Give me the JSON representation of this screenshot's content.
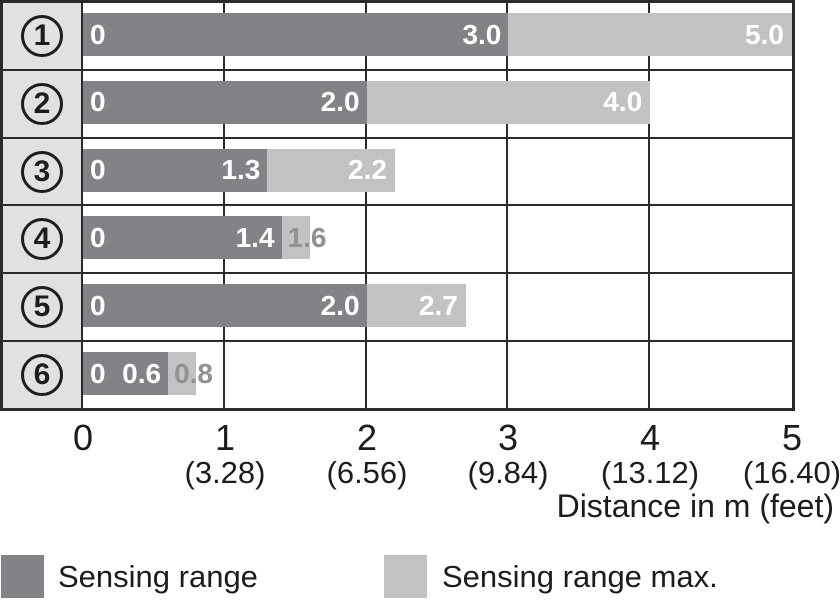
{
  "chart_data": {
    "type": "bar",
    "orientation": "horizontal",
    "categories": [
      "1",
      "2",
      "3",
      "4",
      "5",
      "6"
    ],
    "series": [
      {
        "name": "Sensing range",
        "color": "#818386",
        "values": [
          3.0,
          2.0,
          1.3,
          1.4,
          2.0,
          0.6
        ]
      },
      {
        "name": "Sensing range max.",
        "color": "#c0c2c4",
        "values": [
          5.0,
          4.0,
          2.2,
          1.6,
          2.7,
          0.8
        ]
      }
    ],
    "xlabel": "Distance in m (feet)",
    "xlim": [
      0,
      5
    ],
    "x_ticks_m": [
      "0",
      "1",
      "2",
      "3",
      "4",
      "5"
    ],
    "x_ticks_feet": [
      "",
      "(3.28)",
      "(6.56)",
      "(9.84)",
      "(13.12)",
      "(16.40)"
    ],
    "grid": "on",
    "legend_position": "bottom",
    "bar_start_label": "0"
  },
  "rows": [
    {
      "id": "1",
      "zero": "0",
      "dark": 3.0,
      "dark_label": "3.0",
      "light": 5.0,
      "light_label": "5.0"
    },
    {
      "id": "2",
      "zero": "0",
      "dark": 2.0,
      "dark_label": "2.0",
      "light": 4.0,
      "light_label": "4.0"
    },
    {
      "id": "3",
      "zero": "0",
      "dark": 1.3,
      "dark_label": "1.3",
      "light": 2.2,
      "light_label": "2.2"
    },
    {
      "id": "4",
      "zero": "0",
      "dark": 1.4,
      "dark_label": "1.4",
      "light": 1.6,
      "light_label": "1.6"
    },
    {
      "id": "5",
      "zero": "0",
      "dark": 2.0,
      "dark_label": "2.0",
      "light": 2.7,
      "light_label": "2.7"
    },
    {
      "id": "6",
      "zero": "0",
      "dark": 0.6,
      "dark_label": "0.6",
      "light": 0.8,
      "light_label": "0.8"
    }
  ],
  "axis": {
    "ticks": [
      {
        "m": "0",
        "ft": ""
      },
      {
        "m": "1",
        "ft": "(3.28)"
      },
      {
        "m": "2",
        "ft": "(6.56)"
      },
      {
        "m": "3",
        "ft": "(9.84)"
      },
      {
        "m": "4",
        "ft": "(13.12)"
      },
      {
        "m": "5",
        "ft": "(16.40)"
      }
    ],
    "xlabel": "Distance in m (feet)"
  },
  "legend": {
    "items": [
      {
        "label": "Sensing range",
        "color": "#818386"
      },
      {
        "label": "Sensing range max.",
        "color": "#c0c2c4"
      }
    ]
  }
}
